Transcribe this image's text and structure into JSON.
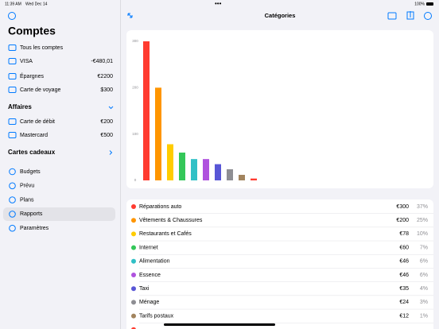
{
  "status_bar": {
    "time": "11:39 AM",
    "date": "Wed Dec 14",
    "battery": "100%"
  },
  "sidebar": {
    "title": "Comptes",
    "accounts": [
      {
        "name": "Tous les comptes"
      },
      {
        "name": "VISA",
        "balance": "-€480,01"
      },
      {
        "name": "Épargnes",
        "balance": "€2200"
      },
      {
        "name": "Carte de voyage",
        "balance": "$300"
      }
    ],
    "groups": [
      {
        "title": "Affaires",
        "accounts": [
          {
            "name": "Carte de débit",
            "balance": "€200"
          },
          {
            "name": "Mastercard",
            "balance": "€500"
          }
        ]
      },
      {
        "title": "Cartes cadeaux",
        "accounts": []
      }
    ],
    "menu": [
      "Budgets",
      "Prévu",
      "Plans",
      "Rapports",
      "Paramètres"
    ],
    "selected_menu": 3
  },
  "header": {
    "title": "Catégories"
  },
  "chart_data": {
    "type": "bar",
    "categories": [
      "Réparations auto",
      "Vêtements & Chaussures",
      "Restaurants et Cafés",
      "Internet",
      "Alimentation",
      "Essence",
      "Taxi",
      "Ménage",
      "Tarifs postaux",
      null
    ],
    "values": [
      300,
      200,
      78,
      60,
      46,
      46,
      35,
      24,
      12,
      4
    ],
    "value_labels": [
      "€300",
      "€200",
      "€78",
      "€60",
      "€46",
      "€46",
      "€35",
      "€24",
      "€12",
      null
    ],
    "colors": [
      "#ff3b30",
      "#ff9500",
      "#ffcc00",
      "#34c759",
      "#30c0c6",
      "#af52de",
      "#5856d6",
      "#8e8e93",
      "#a2845e",
      "#ff3b30"
    ],
    "ylim": [
      0,
      300
    ],
    "yticks": [
      0,
      100,
      200,
      300
    ],
    "grid": false
  },
  "table": {
    "percents": [
      "37%",
      "25%",
      "10%",
      "7%",
      "6%",
      "6%",
      "4%",
      "3%",
      "1%",
      null
    ]
  }
}
